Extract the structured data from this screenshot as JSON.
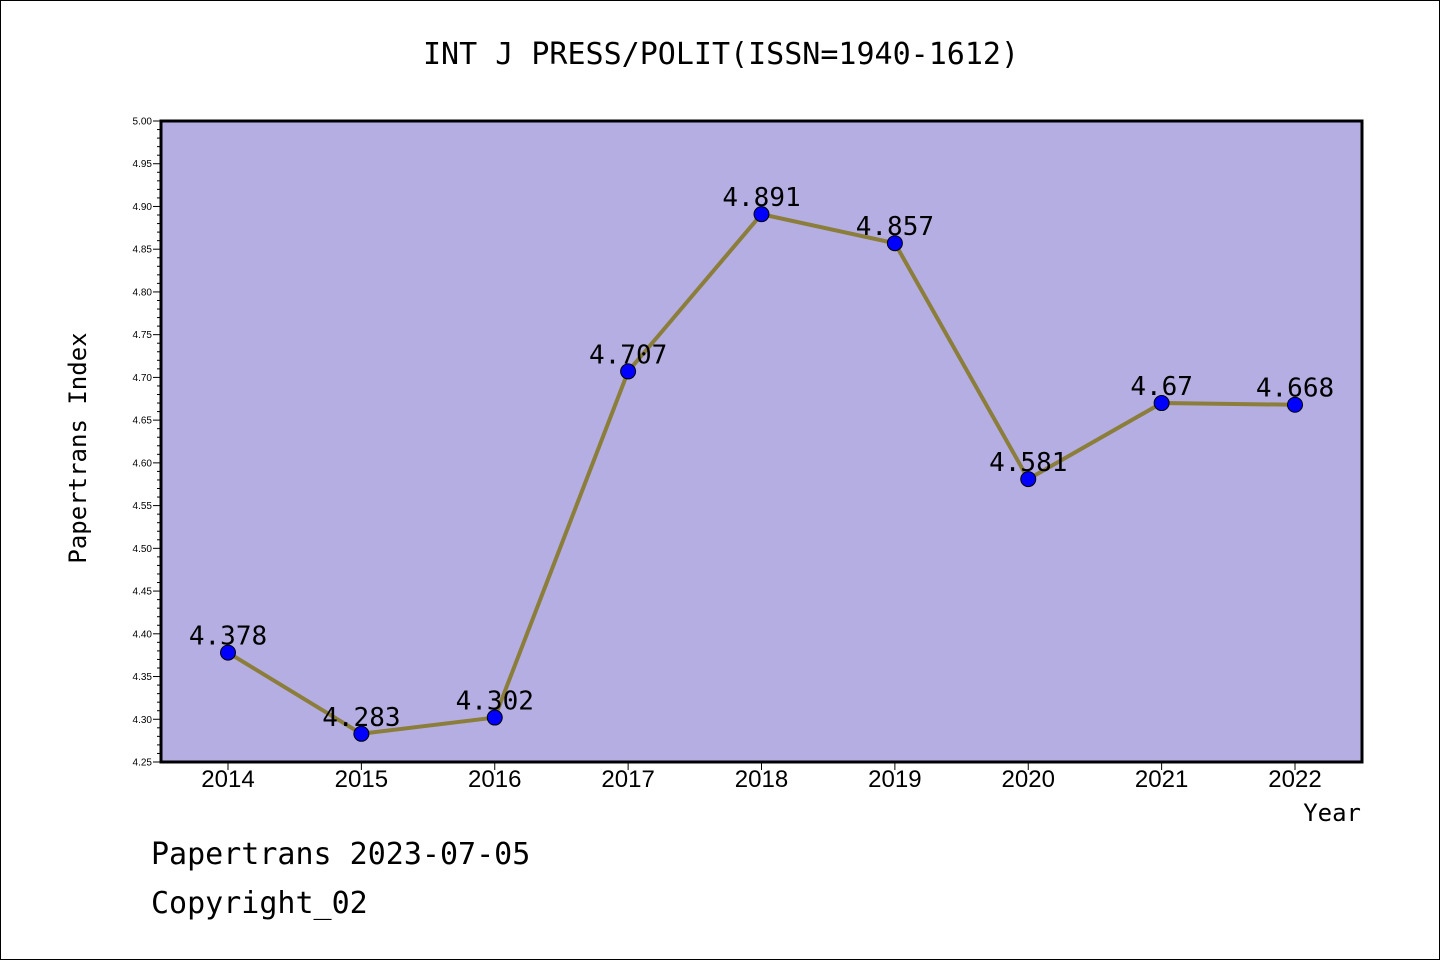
{
  "chart_data": {
    "type": "line",
    "title": "INT J PRESS/POLIT(ISSN=1940-1612)",
    "xlabel": "Year",
    "ylabel": "Papertrans Index",
    "categories": [
      "2014",
      "2015",
      "2016",
      "2017",
      "2018",
      "2019",
      "2020",
      "2021",
      "2022"
    ],
    "series": [
      {
        "values": [
          4.378,
          4.283,
          4.302,
          4.707,
          4.891,
          4.857,
          4.581,
          4.67,
          4.668
        ],
        "labels": [
          "4.378",
          "4.283",
          "4.302",
          "4.707",
          "4.891",
          "4.857",
          "4.581",
          "4.67",
          "4.668"
        ]
      }
    ],
    "ylim": [
      4.25,
      5.0
    ],
    "ytick_step": 0.05,
    "grid": false,
    "background_color": "#b5aee2",
    "line_color": "#8b7d3a",
    "marker_color": "#0000ff"
  },
  "footer": {
    "date_line": "Papertrans 2023-07-05",
    "copyright_line": "Copyright_02"
  }
}
